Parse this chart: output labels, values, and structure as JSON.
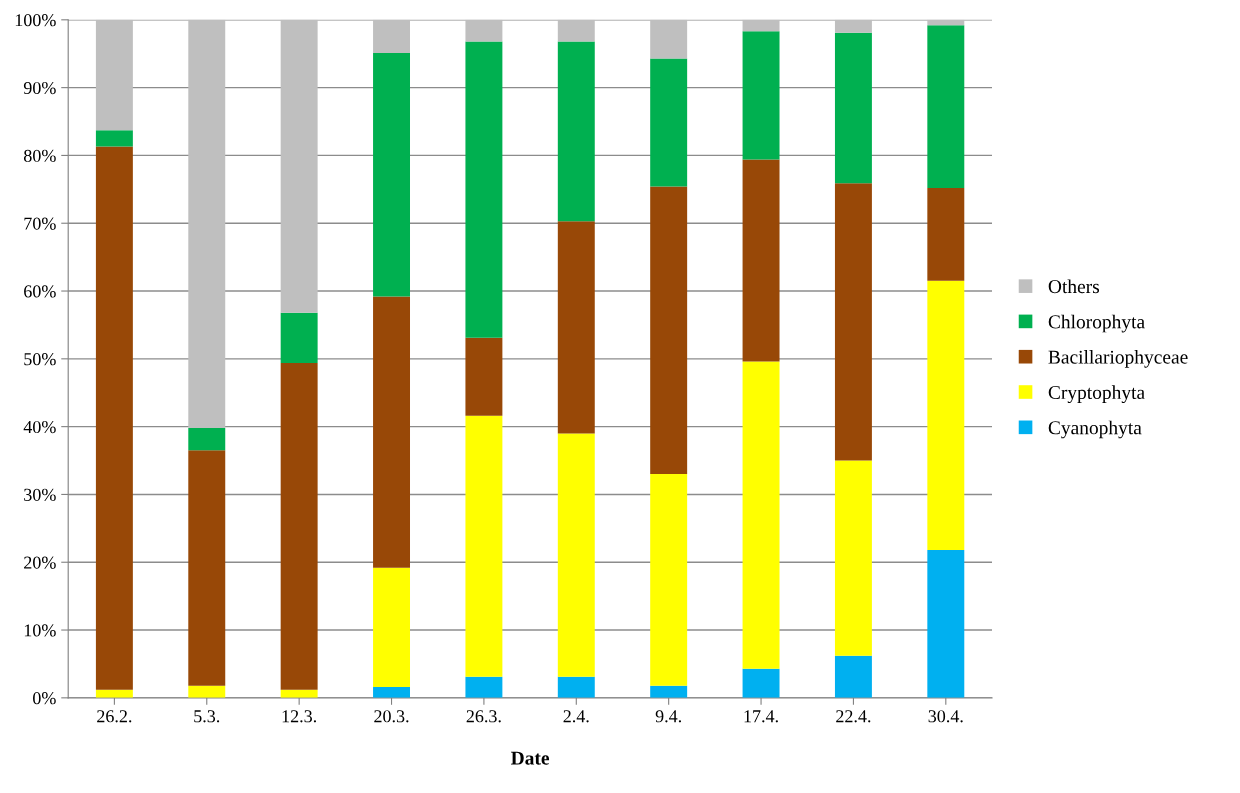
{
  "chart_data": {
    "type": "bar",
    "stacked": true,
    "xlabel": "Date",
    "categories": [
      "26.2.",
      "5.3.",
      "12.3.",
      "20.3.",
      "26.3.",
      "2.4.",
      "9.4.",
      "17.4.",
      "22.4.",
      "30.4."
    ],
    "series": [
      {
        "name": "Cyanophyta",
        "color": "#00b0f0",
        "values": [
          0,
          0,
          0,
          1.6,
          3.1,
          3.1,
          1.8,
          4.3,
          6.2,
          21.8
        ]
      },
      {
        "name": "Cryptophyta",
        "color": "#ffff00",
        "values": [
          1.2,
          1.8,
          1.2,
          17.6,
          38.5,
          35.9,
          31.2,
          45.3,
          28.8,
          39.7
        ]
      },
      {
        "name": "Bacillariophyceae",
        "color": "#984807",
        "values": [
          80.1,
          34.7,
          48.2,
          40.0,
          11.5,
          31.3,
          42.4,
          29.8,
          40.9,
          13.7
        ]
      },
      {
        "name": "Chlorophyta",
        "color": "#00b050",
        "values": [
          2.4,
          3.3,
          7.4,
          35.9,
          43.7,
          26.5,
          18.9,
          18.9,
          22.2,
          24.0
        ]
      },
      {
        "name": "Others",
        "color": "#bfbfbf",
        "values": [
          16.3,
          60.2,
          43.2,
          4.9,
          3.2,
          3.2,
          5.7,
          1.7,
          1.9,
          0.8
        ]
      }
    ],
    "ylim": [
      0,
      100
    ],
    "yticks": [
      {
        "value": 0,
        "label": "0%"
      },
      {
        "value": 10,
        "label": "10%"
      },
      {
        "value": 20,
        "label": "20%"
      },
      {
        "value": 30,
        "label": "30%"
      },
      {
        "value": 40,
        "label": "40%"
      },
      {
        "value": 50,
        "label": "50%"
      },
      {
        "value": 60,
        "label": "60%"
      },
      {
        "value": 70,
        "label": "70%"
      },
      {
        "value": 80,
        "label": "80%"
      },
      {
        "value": 90,
        "label": "90%"
      },
      {
        "value": 100,
        "label": "100%"
      }
    ],
    "grid": "y",
    "legend": "right"
  }
}
